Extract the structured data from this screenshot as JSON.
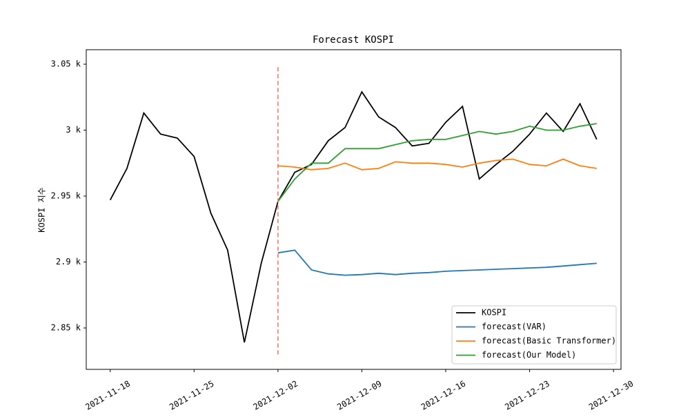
{
  "chart_data": {
    "type": "line",
    "title": "Forecast KOSPI",
    "ylabel": "KOSPI 지수",
    "x": [
      "2021-11-18T00:00",
      "2021-11-19T09:36",
      "2021-11-20T19:12",
      "2021-11-22T04:48",
      "2021-11-23T14:24",
      "2021-11-25T00:00",
      "2021-11-26T09:36",
      "2021-11-27T19:12",
      "2021-11-29T04:48",
      "2021-11-30T14:24",
      "2021-12-02T00:00",
      "2021-12-03T09:36",
      "2021-12-04T19:12",
      "2021-12-06T04:48",
      "2021-12-07T14:24",
      "2021-12-09T00:00",
      "2021-12-10T09:36",
      "2021-12-11T19:12",
      "2021-12-13T04:48",
      "2021-12-14T14:24",
      "2021-12-16T00:00",
      "2021-12-17T09:36",
      "2021-12-18T19:12",
      "2021-12-20T04:48",
      "2021-12-21T14:24",
      "2021-12-23T00:00",
      "2021-12-24T09:36",
      "2021-12-25T19:12",
      "2021-12-27T04:48",
      "2021-12-28T14:24"
    ],
    "series": [
      {
        "name": "KOSPI",
        "color": "#000000",
        "values": [
          2947,
          2971,
          3013,
          2997,
          2994,
          2980,
          2937,
          2909,
          2839,
          2899,
          2946,
          2968,
          2974,
          2992,
          3002,
          3029,
          3010,
          3002,
          2988,
          2990,
          3006,
          3018,
          2963,
          2974,
          2984,
          2997,
          3013,
          2999,
          3020,
          2993
        ]
      },
      {
        "name": "forecast(VAR)",
        "color": "#1f77b4",
        "values": [
          null,
          null,
          null,
          null,
          null,
          null,
          null,
          null,
          null,
          null,
          2907,
          2909,
          2894,
          2891,
          2890,
          2890.5,
          2891.5,
          2890.5,
          2891.5,
          2892,
          2893,
          2893.5,
          2894,
          2894.5,
          2895,
          2895.5,
          2896,
          2897,
          2898,
          2899
        ]
      },
      {
        "name": "forecast(Basic Transformer)",
        "color": "#ff7f0e",
        "values": [
          null,
          null,
          null,
          null,
          null,
          null,
          null,
          null,
          null,
          null,
          2973,
          2972,
          2970,
          2971,
          2975,
          2970,
          2971,
          2976,
          2975,
          2975,
          2974,
          2972,
          2975,
          2977,
          2978,
          2974,
          2973,
          2978,
          2973,
          2971
        ]
      },
      {
        "name": "forecast(Our Model)",
        "color": "#2ca02c",
        "values": [
          null,
          null,
          null,
          null,
          null,
          null,
          null,
          null,
          null,
          null,
          2946,
          2963,
          2975,
          2975,
          2986,
          2986,
          2986,
          2989,
          2992,
          2993,
          2993,
          2996,
          2999,
          2997,
          2999,
          3003,
          3000,
          3000,
          3003,
          3005
        ]
      }
    ],
    "xlim": [
      "2021-11-16T00:00",
      "2021-12-30T15:00"
    ],
    "xticks": [
      "2021-11-18",
      "2021-11-25",
      "2021-12-02",
      "2021-12-09",
      "2021-12-16",
      "2021-12-23",
      "2021-12-30"
    ],
    "ylim": [
      2818.6,
      3061
    ],
    "yticks": [
      {
        "value": 2850,
        "label": "2.85 k"
      },
      {
        "value": 2900,
        "label": "2.9 k"
      },
      {
        "value": 2950,
        "label": "2.95 k"
      },
      {
        "value": 3000,
        "label": "3 k"
      },
      {
        "value": 3050,
        "label": "3.05 k"
      }
    ],
    "vline": {
      "x": "2021-12-02",
      "ymin": 2830,
      "ymax": 3048,
      "color": "#ff6b6b"
    },
    "legend": "lower right",
    "grid": false
  }
}
